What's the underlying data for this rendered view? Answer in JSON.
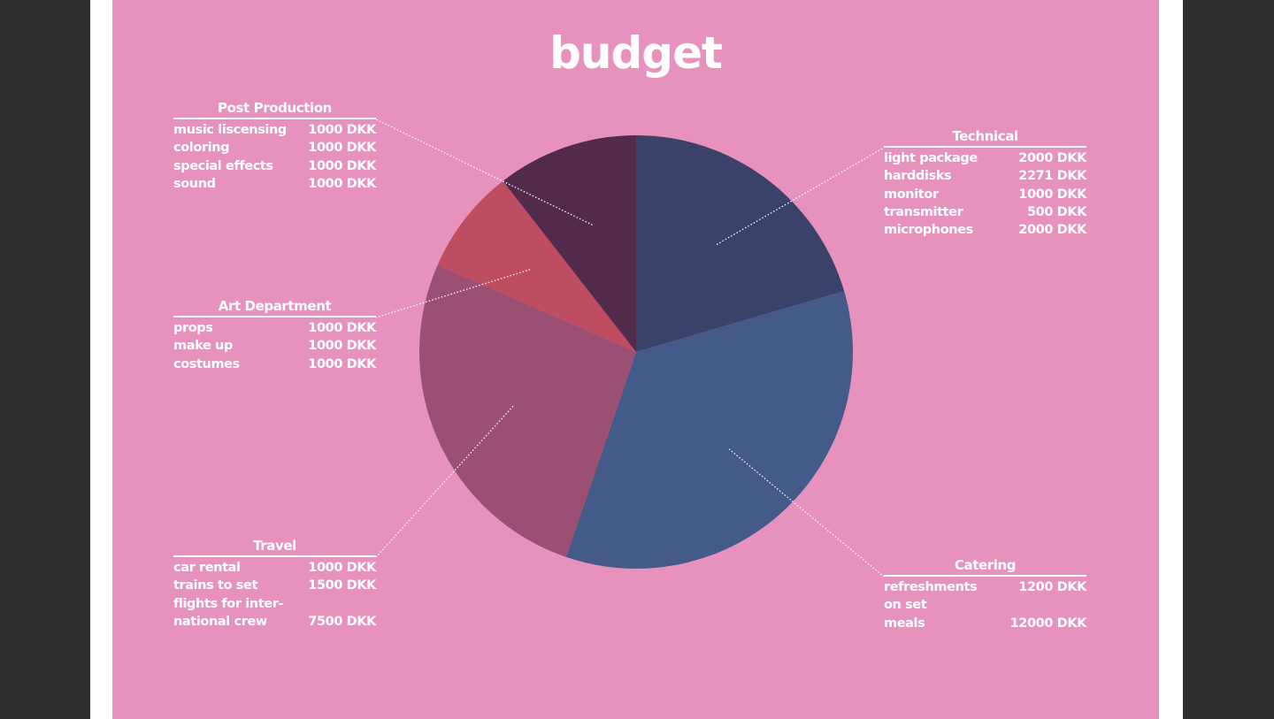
{
  "chart_data": {
    "type": "pie",
    "title": "budget",
    "start_angle_deg": 0,
    "direction": "clockwise",
    "slices": [
      {
        "name": "Technical",
        "value": 7771,
        "color": "#3a4269"
      },
      {
        "name": "Catering",
        "value": 13200,
        "color": "#445a89"
      },
      {
        "name": "Travel",
        "value": 10000,
        "color": "#9b4f73"
      },
      {
        "name": "Art Department",
        "value": 3000,
        "color": "#be4d62"
      },
      {
        "name": "Post Production",
        "value": 4000,
        "color": "#522b4c"
      }
    ],
    "groups": {
      "post_production": {
        "title": "Post Production",
        "items": [
          {
            "label": "music liscensing",
            "value": "1000 DKK"
          },
          {
            "label": "coloring",
            "value": "1000 DKK"
          },
          {
            "label": "special effects",
            "value": "1000 DKK"
          },
          {
            "label": "sound",
            "value": "1000 DKK"
          }
        ]
      },
      "art_department": {
        "title": "Art Department",
        "items": [
          {
            "label": "props",
            "value": "1000 DKK"
          },
          {
            "label": "make up",
            "value": "1000 DKK"
          },
          {
            "label": "costumes",
            "value": "1000 DKK"
          }
        ]
      },
      "travel": {
        "title": "Travel",
        "items": [
          {
            "label": "car rental",
            "value": "1000 DKK"
          },
          {
            "label": "trains to set",
            "value": "1500 DKK"
          },
          {
            "label": "flights for inter-",
            "value": ""
          },
          {
            "label": "national crew",
            "value": "7500 DKK"
          }
        ]
      },
      "technical": {
        "title": "Technical",
        "items": [
          {
            "label": "light package",
            "value": "2000 DKK"
          },
          {
            "label": "harddisks",
            "value": "2271 DKK"
          },
          {
            "label": "monitor",
            "value": "1000 DKK"
          },
          {
            "label": "transmitter",
            "value": "500 DKK"
          },
          {
            "label": "microphones",
            "value": "2000 DKK"
          }
        ]
      },
      "catering": {
        "title": "Catering",
        "items": [
          {
            "label": "refreshments",
            "value": "1200 DKK"
          },
          {
            "label": "on set",
            "value": ""
          },
          {
            "label": "meals",
            "value": "12000 DKK"
          }
        ]
      }
    }
  },
  "colors": {
    "background": "#e692bc",
    "text": "#ffffff",
    "frame": "#ffffff",
    "outer": "#2e2e2e"
  }
}
